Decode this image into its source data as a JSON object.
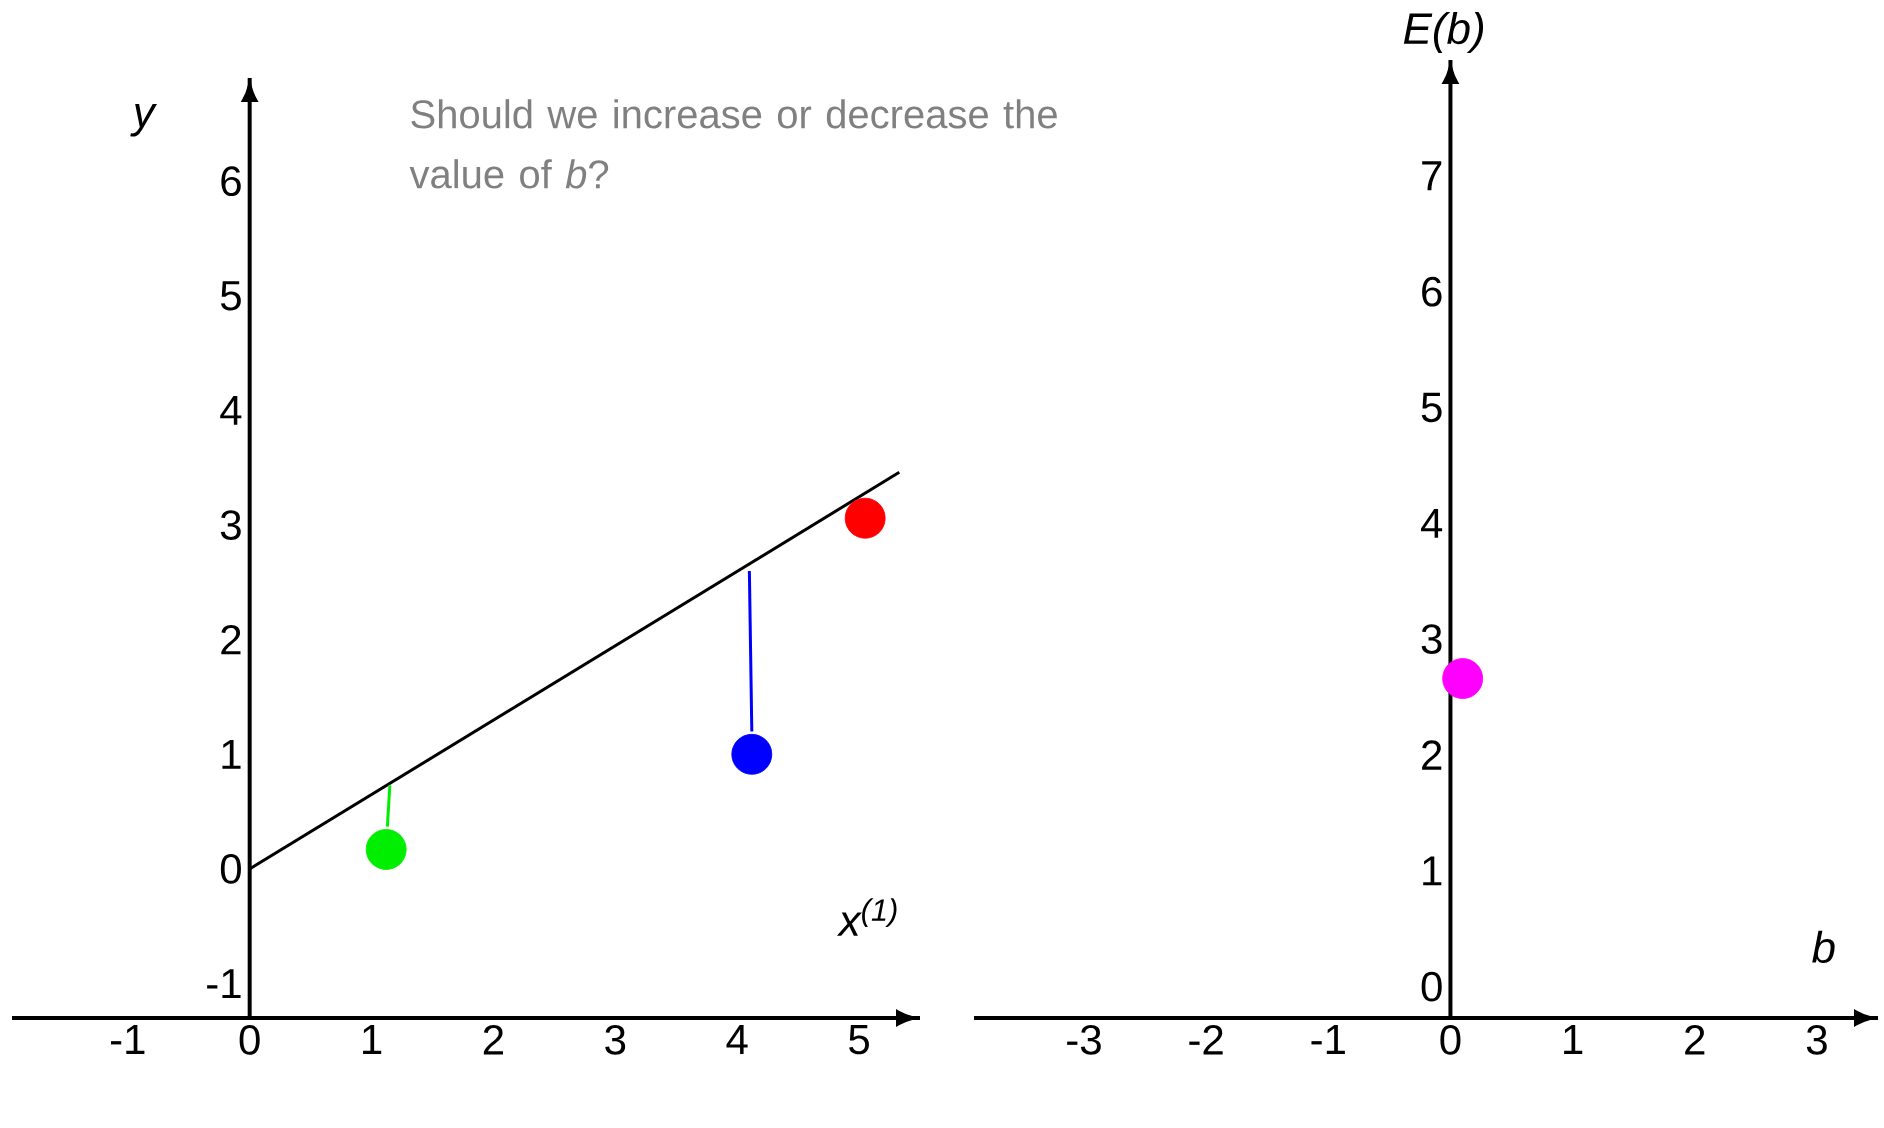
{
  "chart_data": [
    {
      "type": "scatter",
      "xlabel": "*x*$^{(1)}$",
      "ylabel": "y",
      "annotations": [
        "Should we increase or decrease the value of *b*?"
      ],
      "xlim": [
        -1.95,
        5.5
      ],
      "ylim": [
        -1.3,
        6.9
      ],
      "xticks": [
        -1,
        0,
        1,
        2,
        3,
        4,
        5
      ],
      "yticks": [
        -1,
        0,
        1,
        2,
        3,
        4,
        5,
        6
      ],
      "marker": "circle",
      "grid": false,
      "series": [
        {
          "type": "line",
          "color": "#000000",
          "x": [
            0,
            5.33
          ],
          "values": [
            0,
            3.46
          ],
          "marker": "none"
        },
        {
          "type": "line",
          "color": "#00ee00",
          "x": [
            1.13,
            1.15
          ],
          "values": [
            0.37,
            0.73
          ],
          "marker": "none"
        },
        {
          "type": "line",
          "color": "#0000ff",
          "x": [
            4.12,
            4.1
          ],
          "values": [
            1.2,
            2.6
          ],
          "marker": "none"
        },
        {
          "color": "#00ee00",
          "x": [
            1.12
          ],
          "values": [
            0.17
          ]
        },
        {
          "color": "#0000ff",
          "x": [
            4.12
          ],
          "values": [
            1.0
          ]
        },
        {
          "color": "#ff0000",
          "x": [
            5.05
          ],
          "values": [
            3.06
          ]
        }
      ]
    },
    {
      "type": "scatter",
      "xlabel": "b",
      "ylabel": "E(b)",
      "xlim": [
        -3.9,
        3.5
      ],
      "ylim": [
        -0.27,
        8.0
      ],
      "xticks": [
        -3,
        -2,
        -1,
        0,
        1,
        2,
        3
      ],
      "yticks": [
        0,
        1,
        2,
        3,
        4,
        5,
        6,
        7
      ],
      "marker": "circle",
      "grid": false,
      "series": [
        {
          "color": "#ff00ff",
          "x": [
            0.1
          ],
          "values": [
            2.66
          ]
        }
      ]
    }
  ]
}
